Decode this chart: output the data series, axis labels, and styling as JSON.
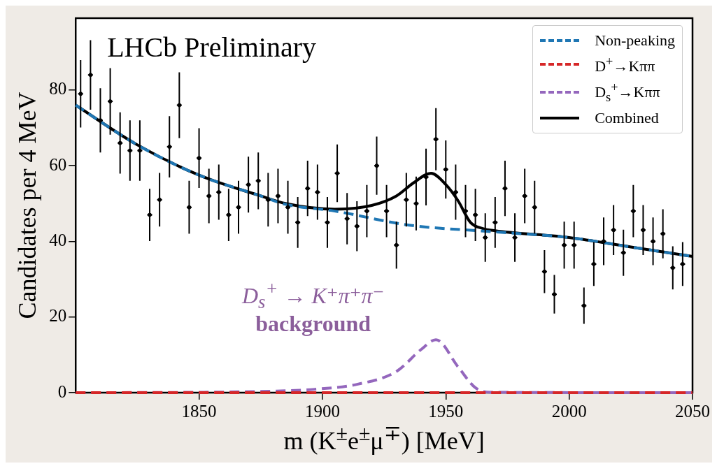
{
  "chart_data": {
    "type": "line",
    "xlabel": "m (K$^{±}$e$^{±}$μ$^{∓}$) [MeV]",
    "ylabel": "Candidates per 4 MeV",
    "xlim": [
      1800,
      2050
    ],
    "xticks": [
      1850,
      1900,
      1950,
      2000,
      2050
    ],
    "ylim": [
      0,
      99
    ],
    "yticks": [
      0,
      20,
      40,
      60,
      80
    ],
    "grid": false,
    "legend": "top right",
    "annotations": [
      "LHCb Preliminary",
      "D$_{s}$$^{+}$ → K⁺π⁺π⁻",
      "background"
    ],
    "series": [
      {
        "type": "scatter",
        "color": "#000000",
        "x": [
          1802,
          1806,
          1810,
          1814,
          1818,
          1822,
          1826,
          1830,
          1834,
          1838,
          1842,
          1846,
          1850,
          1854,
          1858,
          1862,
          1866,
          1870,
          1874,
          1878,
          1882,
          1886,
          1890,
          1894,
          1898,
          1902,
          1906,
          1910,
          1914,
          1918,
          1922,
          1926,
          1930,
          1934,
          1938,
          1942,
          1946,
          1950,
          1954,
          1958,
          1962,
          1966,
          1970,
          1974,
          1978,
          1982,
          1986,
          1990,
          1994,
          1998,
          2002,
          2006,
          2010,
          2014,
          2018,
          2022,
          2026,
          2030,
          2034,
          2038,
          2042,
          2046
        ],
        "values": [
          79,
          84,
          72,
          77,
          66,
          64,
          64,
          47,
          51,
          65,
          76,
          49,
          62,
          52,
          53,
          47,
          49,
          55,
          56,
          51,
          52,
          49,
          45,
          54,
          53,
          45,
          58,
          46,
          44,
          48,
          60,
          48,
          39,
          51,
          50,
          57,
          67,
          59,
          53,
          48,
          47,
          41,
          45,
          54,
          41,
          52,
          49,
          32,
          26,
          39,
          39,
          23,
          34,
          40,
          43,
          37,
          48,
          43,
          40,
          42,
          33,
          34
        ],
        "errors": [
          8.9,
          9.2,
          8.5,
          8.8,
          8.1,
          8,
          8,
          6.9,
          7.1,
          8.1,
          8.7,
          7,
          7.9,
          7.2,
          7.3,
          6.9,
          7,
          7.4,
          7.5,
          7.1,
          7.2,
          7,
          6.7,
          7.3,
          7.3,
          6.7,
          7.6,
          6.8,
          6.6,
          6.9,
          7.7,
          6.9,
          6.2,
          7.1,
          7.1,
          7.5,
          8.2,
          7.7,
          7.3,
          6.9,
          6.9,
          6.4,
          6.7,
          7.3,
          6.4,
          7.2,
          7,
          5.7,
          5.1,
          6.2,
          6.2,
          4.8,
          5.8,
          6.3,
          6.6,
          6.1,
          6.9,
          6.6,
          6.3,
          6.5,
          5.7,
          5.8
        ],
        "xerrors": [
          1,
          1,
          1,
          1,
          1,
          1,
          1,
          1,
          1,
          1,
          1,
          1,
          1,
          1,
          1,
          1,
          1,
          1,
          1,
          1,
          1,
          1,
          1,
          1,
          1,
          1,
          1,
          1,
          1,
          1,
          1,
          1,
          1,
          1,
          1,
          1,
          1,
          1,
          1,
          1,
          1,
          1,
          1,
          1,
          1,
          1,
          1,
          1,
          1,
          1,
          1,
          1,
          1,
          1,
          1,
          1,
          1,
          1,
          1,
          1,
          1,
          1
        ],
        "marker": "circle"
      },
      {
        "name": "Non-peaking",
        "color": "#1f77b4",
        "line_style": "dashed",
        "x": [
          1800,
          1825,
          1850,
          1875,
          1885,
          1905,
          1935,
          1970,
          2000,
          2025,
          2050
        ],
        "values": [
          76,
          65.5,
          57.5,
          52,
          49.8,
          48,
          44.3,
          42.5,
          41,
          38.5,
          36
        ]
      },
      {
        "name": "D$^{+}$→Kππ",
        "color": "#d62728",
        "line_style": "dashed",
        "x": [
          1800,
          2050
        ],
        "values": [
          0,
          0
        ]
      },
      {
        "name": "D$_{s}$$^{+}$→Kππ",
        "color": "#9467bd",
        "line_style": "dashed",
        "x": [
          1800,
          1850,
          1880,
          1897,
          1914,
          1930,
          1940,
          1946,
          1955,
          1962,
          1968,
          2050
        ],
        "values": [
          0,
          0.1,
          0.4,
          0.9,
          2.2,
          5.6,
          11.4,
          14,
          6.8,
          1.3,
          0.1,
          0
        ]
      },
      {
        "name": "Combined",
        "color": "#000000",
        "line_style": "solid",
        "x": [
          1800,
          1825,
          1850,
          1875,
          1885,
          1905,
          1920,
          1930,
          1937,
          1944,
          1950,
          1955,
          1960,
          1965,
          1970,
          2000,
          2025,
          2050
        ],
        "values": [
          76,
          65.5,
          57.5,
          52,
          50,
          48.5,
          49.5,
          52,
          55.5,
          58,
          55,
          50.7,
          45,
          43.4,
          42.8,
          41,
          38.5,
          36
        ]
      }
    ]
  }
}
